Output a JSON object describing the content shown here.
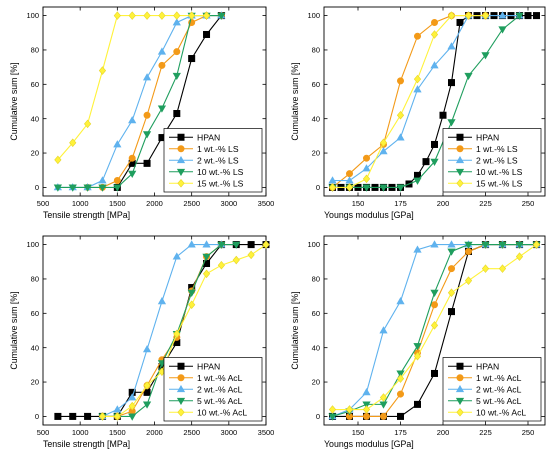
{
  "colors": {
    "HPAN": "#000000",
    "orange": "#f39a18",
    "blue": "#5fb2ee",
    "green": "#1f9e5e",
    "yellow": "#fff23a"
  },
  "chart_data": [
    {
      "type": "line",
      "xlabel": "Tensile strength [MPa]",
      "ylabel": "Cumulative sum [%]",
      "xlim": [
        500,
        3500
      ],
      "ylim": [
        -5,
        105
      ],
      "xticks": [
        500,
        1000,
        1500,
        2000,
        2500,
        3000,
        3500
      ],
      "yticks": [
        0,
        20,
        40,
        60,
        80,
        100
      ],
      "legend_position": "bottom-right",
      "series": [
        {
          "name": "HPAN",
          "color": "#000000",
          "marker": "square",
          "x": [
            1500,
            1700,
            1900,
            2100,
            2300,
            2500,
            2700,
            2900
          ],
          "y": [
            0,
            14,
            14,
            29,
            43,
            75,
            89,
            100
          ]
        },
        {
          "name": "1 wt.-% LS",
          "color": "#f39a18",
          "marker": "circle",
          "x": [
            1100,
            1300,
            1500,
            1700,
            1900,
            2100,
            2300,
            2500,
            2700,
            2900
          ],
          "y": [
            0,
            0,
            4,
            17,
            42,
            71,
            79,
            96,
            100,
            100
          ]
        },
        {
          "name": "2 wt.-% LS",
          "color": "#5fb2ee",
          "marker": "triangle-up",
          "x": [
            700,
            900,
            1100,
            1300,
            1500,
            1700,
            1900,
            2100,
            2300,
            2500,
            2700,
            2900
          ],
          "y": [
            0,
            0,
            0,
            4,
            25,
            39,
            64,
            79,
            96,
            100,
            100,
            100
          ]
        },
        {
          "name": "10 wt.-% LS",
          "color": "#1f9e5e",
          "marker": "triangle-down",
          "x": [
            700,
            900,
            1100,
            1300,
            1500,
            1700,
            1900,
            2100,
            2300,
            2500,
            2700,
            2900
          ],
          "y": [
            0,
            0,
            0,
            0,
            0,
            8,
            31,
            46,
            65,
            100,
            100,
            100
          ]
        },
        {
          "name": "15 wt.-% LS",
          "color": "#fff23a",
          "marker": "diamond",
          "x": [
            700,
            900,
            1100,
            1300,
            1500,
            1700,
            1900,
            2100,
            2300,
            2500,
            2700
          ],
          "y": [
            16,
            26,
            37,
            68,
            100,
            100,
            100,
            100,
            100,
            100,
            100
          ]
        }
      ]
    },
    {
      "type": "line",
      "xlabel": "Youngs modulus [GPa]",
      "ylabel": "Cumulative sum [%]",
      "xlim": [
        130,
        260
      ],
      "ylim": [
        -5,
        105
      ],
      "xticks": [
        150,
        175,
        200,
        225,
        250
      ],
      "yticks": [
        0,
        20,
        40,
        60,
        80,
        100
      ],
      "legend_position": "bottom-right",
      "series": [
        {
          "name": "HPAN",
          "color": "#000000",
          "marker": "square",
          "x": [
            135,
            140,
            145,
            150,
            155,
            160,
            165,
            170,
            175,
            180,
            185,
            190,
            195,
            200,
            205,
            210,
            215,
            220,
            225,
            230,
            235,
            240,
            245,
            250,
            255
          ],
          "y": [
            0,
            0,
            0,
            0,
            0,
            0,
            0,
            0,
            0,
            2,
            7,
            15,
            25,
            42,
            61,
            96,
            100,
            100,
            100,
            100,
            100,
            100,
            100,
            100,
            100
          ]
        },
        {
          "name": "1 wt.-% LS",
          "color": "#f39a18",
          "marker": "circle",
          "x": [
            135,
            145,
            155,
            165,
            175,
            185,
            195,
            205,
            215,
            225
          ],
          "y": [
            0,
            8,
            17,
            25,
            62,
            88,
            96,
            100,
            100,
            100
          ]
        },
        {
          "name": "2 wt.-% LS",
          "color": "#5fb2ee",
          "marker": "triangle-up",
          "x": [
            135,
            145,
            155,
            165,
            175,
            185,
            195,
            205,
            215,
            225,
            235,
            245
          ],
          "y": [
            4,
            4,
            11,
            21,
            29,
            57,
            71,
            82,
            100,
            100,
            100,
            100
          ]
        },
        {
          "name": "10 wt.-% LS",
          "color": "#1f9e5e",
          "marker": "triangle-down",
          "x": [
            135,
            145,
            155,
            165,
            175,
            185,
            195,
            205,
            215,
            225,
            235,
            245
          ],
          "y": [
            0,
            0,
            0,
            0,
            0,
            4,
            15,
            38,
            65,
            77,
            92,
            100
          ]
        },
        {
          "name": "15 wt.-% LS",
          "color": "#fff23a",
          "marker": "diamond",
          "x": [
            135,
            145,
            155,
            165,
            175,
            185,
            195,
            205,
            215,
            225
          ],
          "y": [
            0,
            0,
            5,
            26,
            42,
            63,
            89,
            100,
            100,
            100
          ]
        }
      ]
    },
    {
      "type": "line",
      "xlabel": "Tensile strength [MPa]",
      "ylabel": "Cumulative sum [%]",
      "xlim": [
        500,
        3500
      ],
      "ylim": [
        -5,
        105
      ],
      "xticks": [
        500,
        1000,
        1500,
        2000,
        2500,
        3000,
        3500
      ],
      "yticks": [
        0,
        20,
        40,
        60,
        80,
        100
      ],
      "legend_position": "bottom-right",
      "series": [
        {
          "name": "HPAN",
          "color": "#000000",
          "marker": "square",
          "x": [
            700,
            900,
            1100,
            1300,
            1500,
            1700,
            1900,
            2100,
            2300,
            2500,
            2700,
            2900,
            3100,
            3300,
            3500
          ],
          "y": [
            0,
            0,
            0,
            0,
            0,
            14,
            14,
            29,
            43,
            75,
            89,
            100,
            100,
            100,
            100
          ]
        },
        {
          "name": "1 wt.-% AcL",
          "color": "#f39a18",
          "marker": "circle",
          "x": [
            1300,
            1500,
            1700,
            1900,
            2100,
            2300,
            2500,
            2700,
            2900
          ],
          "y": [
            0,
            0,
            3,
            18,
            33,
            46,
            73,
            93,
            100
          ]
        },
        {
          "name": "2 wt.-% AcL",
          "color": "#5fb2ee",
          "marker": "triangle-up",
          "x": [
            1300,
            1500,
            1700,
            1900,
            2100,
            2300,
            2500,
            2700,
            2900
          ],
          "y": [
            0,
            4,
            11,
            39,
            67,
            93,
            100,
            100,
            100
          ]
        },
        {
          "name": "5 wt.-% AcL",
          "color": "#1f9e5e",
          "marker": "triangle-down",
          "x": [
            1300,
            1500,
            1700,
            1900,
            2100,
            2300,
            2500,
            2700,
            2900,
            3100
          ],
          "y": [
            0,
            0,
            0,
            7,
            31,
            48,
            72,
            93,
            100,
            100
          ]
        },
        {
          "name": "10 wt.-% AcL",
          "color": "#fff23a",
          "marker": "diamond",
          "x": [
            1300,
            1500,
            1700,
            1900,
            2100,
            2300,
            2500,
            2700,
            2900,
            3100,
            3300,
            3500
          ],
          "y": [
            0,
            0,
            6,
            18,
            26,
            48,
            65,
            83,
            88,
            91,
            94,
            100
          ]
        }
      ]
    },
    {
      "type": "line",
      "xlabel": "Youngs modulus [GPa]",
      "ylabel": "Cumulative sum [%]",
      "xlim": [
        130,
        260
      ],
      "ylim": [
        -5,
        105
      ],
      "xticks": [
        150,
        175,
        200,
        225,
        250
      ],
      "yticks": [
        0,
        20,
        40,
        60,
        80,
        100
      ],
      "legend_position": "bottom-right",
      "series": [
        {
          "name": "HPAN",
          "color": "#000000",
          "marker": "square",
          "x": [
            135,
            145,
            155,
            165,
            175,
            185,
            195,
            205,
            215,
            225,
            235,
            245,
            255
          ],
          "y": [
            0,
            0,
            0,
            0,
            0,
            7,
            25,
            61,
            96,
            100,
            100,
            100,
            100
          ]
        },
        {
          "name": "1 wt.-% AcL",
          "color": "#f39a18",
          "marker": "circle",
          "x": [
            145,
            155,
            165,
            175,
            185,
            195,
            205,
            215,
            225,
            235,
            245,
            255
          ],
          "y": [
            0,
            0,
            0,
            13,
            37,
            65,
            86,
            96,
            100,
            100,
            100,
            100
          ]
        },
        {
          "name": "2 wt.-% AcL",
          "color": "#5fb2ee",
          "marker": "triangle-up",
          "x": [
            135,
            145,
            155,
            165,
            175,
            185,
            195,
            205,
            215,
            225,
            235,
            245,
            255
          ],
          "y": [
            0,
            4,
            14,
            50,
            67,
            97,
            100,
            100,
            100,
            100,
            100,
            100,
            100
          ]
        },
        {
          "name": "5 wt.-% AcL",
          "color": "#1f9e5e",
          "marker": "triangle-down",
          "x": [
            135,
            145,
            155,
            165,
            175,
            185,
            195,
            205,
            215,
            225,
            235,
            245,
            255
          ],
          "y": [
            0,
            3,
            7,
            7,
            25,
            41,
            72,
            96,
            100,
            100,
            100,
            100,
            100
          ]
        },
        {
          "name": "10 wt.-% AcL",
          "color": "#fff23a",
          "marker": "diamond",
          "x": [
            135,
            145,
            155,
            165,
            175,
            185,
            195,
            205,
            215,
            225,
            235,
            245,
            255
          ],
          "y": [
            4,
            4,
            4,
            11,
            22,
            35,
            53,
            72,
            79,
            86,
            86,
            93,
            100
          ]
        }
      ]
    }
  ]
}
